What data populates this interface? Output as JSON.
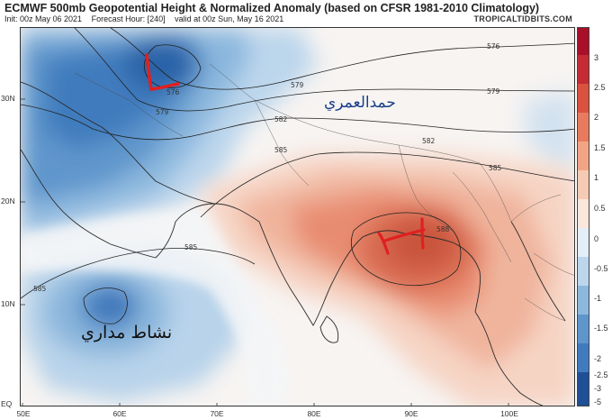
{
  "header": {
    "title": "ECMWF 500mb Geopotential Height & Normalized Anomaly (based on CFSR 1981-2010 Climatology)",
    "init": "Init: 00z May 06 2021",
    "forecast_hour": "Forecast Hour: [240]",
    "valid": "valid at 00z Sun, May 16 2021",
    "brand": "TROPICALTIDBITS.COM"
  },
  "axes": {
    "lat_labels": [
      "30N",
      "20N",
      "10N",
      "EQ"
    ],
    "lon_labels": [
      "50E",
      "60E",
      "70E",
      "80E",
      "90E",
      "100E"
    ]
  },
  "colorbar": {
    "labels": [
      "3",
      "2.5",
      "2",
      "1.5",
      "1",
      "0.5",
      "0",
      "-0.5",
      "-1",
      "-1.5",
      "-2",
      "-2.5",
      "-3",
      "-5"
    ],
    "positive_color": "#c0392b",
    "negative_color": "#2c6fb0"
  },
  "contours": {
    "labels": [
      "576",
      "576",
      "579",
      "579",
      "579",
      "582",
      "582",
      "585",
      "585",
      "585",
      "585",
      "588"
    ]
  },
  "annotations": {
    "author_arabic": "حمدالعمري",
    "tropical_arabic": "نشاط مداري",
    "low_marker": "L",
    "high_marker": "H",
    "marker_color": "#e02020"
  }
}
